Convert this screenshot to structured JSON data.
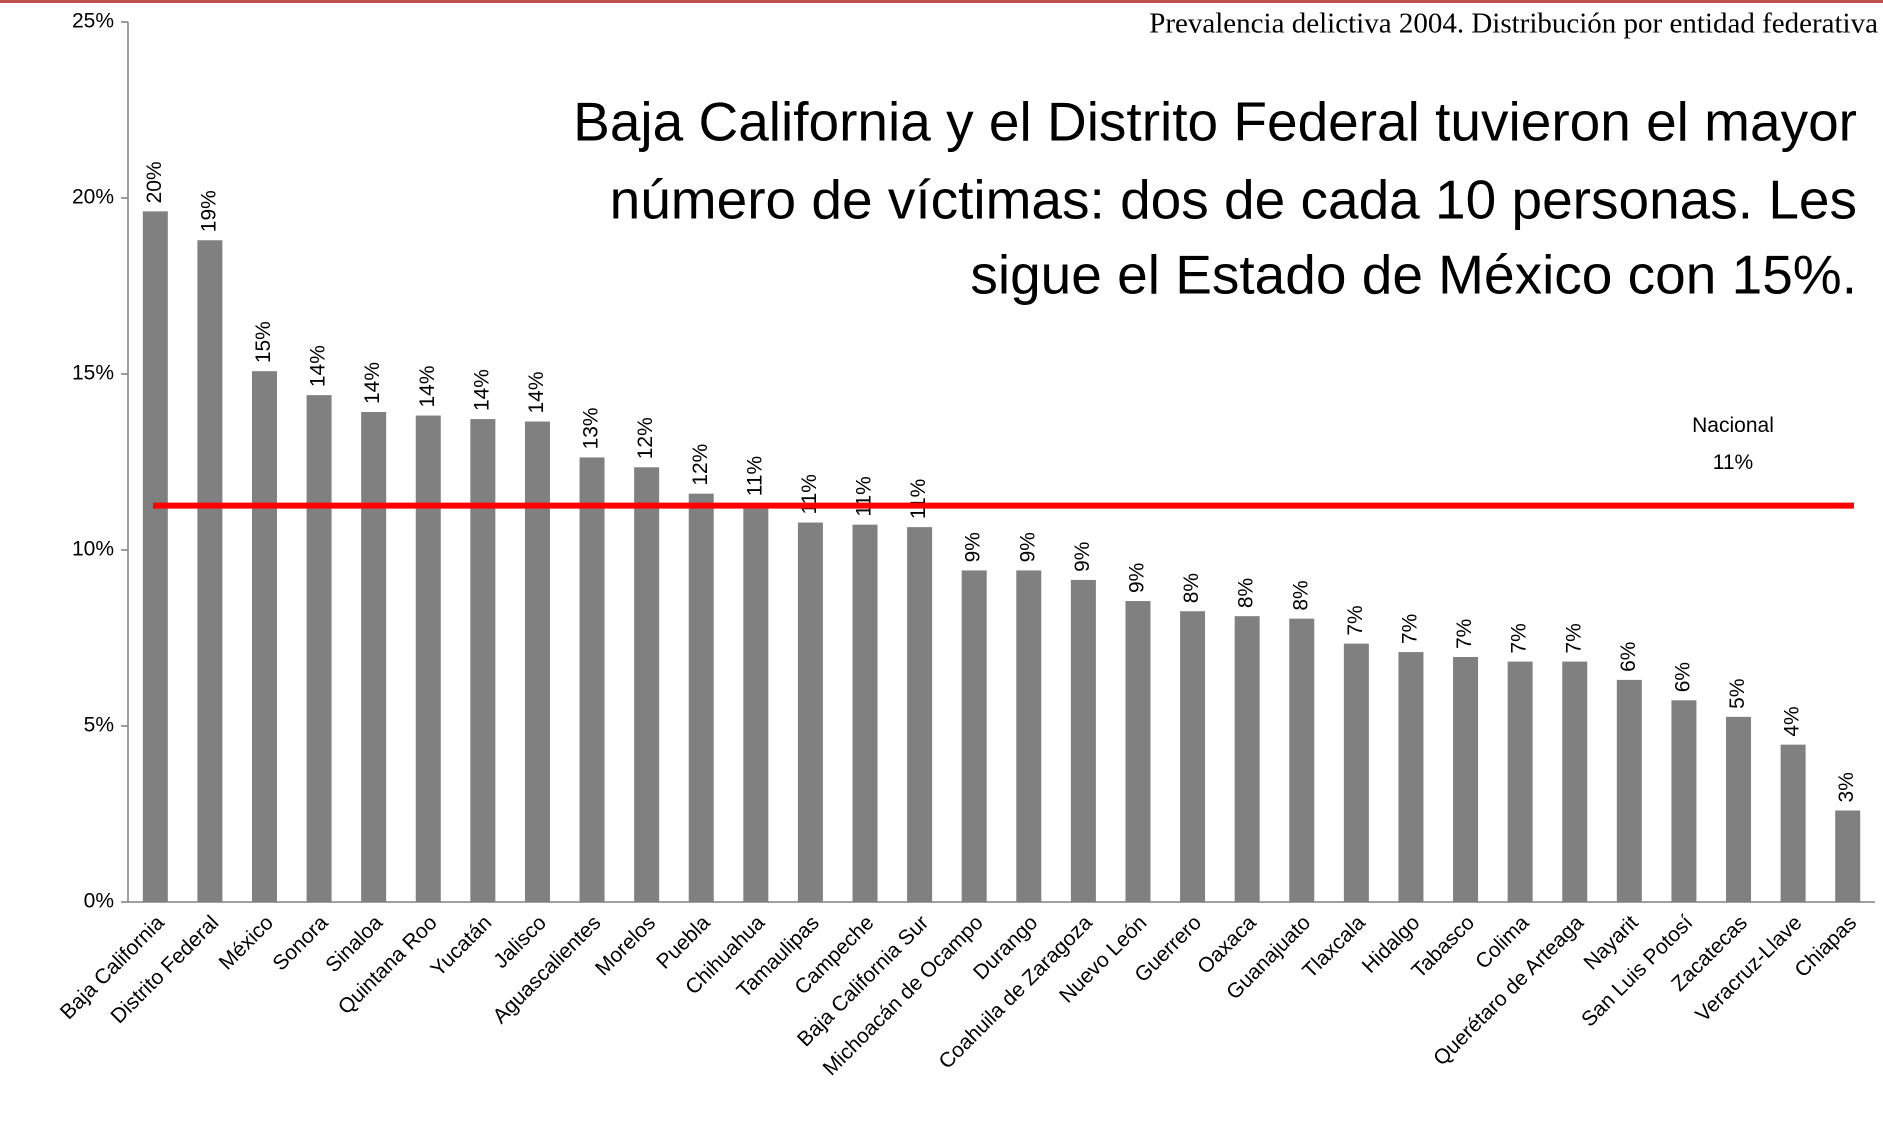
{
  "chart_data": {
    "type": "bar",
    "title": "Prevalencia delictiva 2004. Distribución por entidad federativa",
    "annotation": [
      "Baja California y el Distrito Federal tuvieron el mayor",
      "número de víctimas: dos de cada 10 personas. Les",
      "sigue el Estado de México con 15%."
    ],
    "categories": [
      "Baja California",
      "Distrito Federal",
      "México",
      "Sonora",
      "Sinaloa",
      "Quintana Roo",
      "Yucatán",
      "Jalisco",
      "Aguascalientes",
      "Morelos",
      "Puebla",
      "Chihuahua",
      "Tamaulipas",
      "Campeche",
      "Baja California Sur",
      "Michoacán de Ocampo",
      "Durango",
      "Coahuila de Zaragoza",
      "Nuevo León",
      "Guerrero",
      "Oaxaca",
      "Guanajuato",
      "Tlaxcala",
      "Hidalgo",
      "Tabasco",
      "Colima",
      "Querétaro de Arteaga",
      "Nayarit",
      "San Luis Potosí",
      "Zacatecas",
      "Veracruz-Llave",
      "Chiapas"
    ],
    "values": [
      19.62,
      18.8,
      15.08,
      14.4,
      13.92,
      13.82,
      13.72,
      13.65,
      12.63,
      12.35,
      11.6,
      11.3,
      10.78,
      10.72,
      10.65,
      9.42,
      9.42,
      9.15,
      8.55,
      8.26,
      8.12,
      8.05,
      7.34,
      7.1,
      6.96,
      6.83,
      6.83,
      6.31,
      5.73,
      5.26,
      4.47,
      2.6
    ],
    "value_labels": [
      "20%",
      "19%",
      "15%",
      "14%",
      "14%",
      "14%",
      "14%",
      "14%",
      "13%",
      "12%",
      "12%",
      "11%",
      "11%",
      "11%",
      "11%",
      "9%",
      "9%",
      "9%",
      "9%",
      "8%",
      "8%",
      "8%",
      "7%",
      "7%",
      "7%",
      "7%",
      "7%",
      "6%",
      "6%",
      "5%",
      "4%",
      "3%"
    ],
    "color": "#808080",
    "reference_line": {
      "value": 11.26,
      "label": "Nacional",
      "value_label": "11%",
      "color": "#ff0000"
    },
    "ylim": [
      0,
      25
    ],
    "yticks": [
      {
        "value": 0,
        "label": "0%"
      },
      {
        "value": 5,
        "label": "5%"
      },
      {
        "value": 10,
        "label": "10%"
      },
      {
        "value": 15,
        "label": "15%"
      },
      {
        "value": 20,
        "label": "20%"
      },
      {
        "value": 25,
        "label": "25%"
      }
    ],
    "grid": false
  }
}
